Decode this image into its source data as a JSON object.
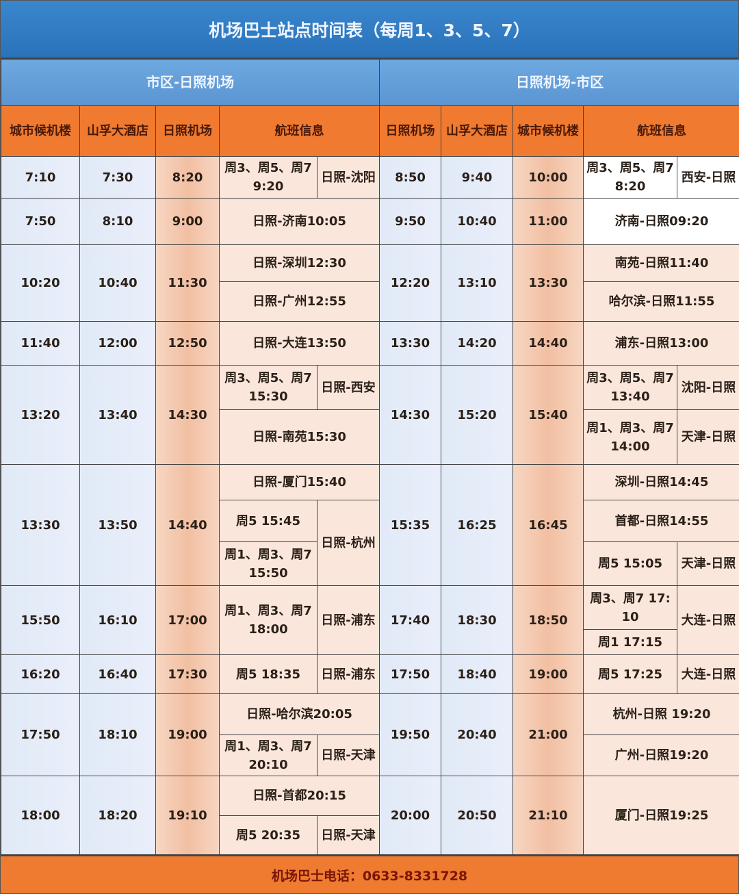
{
  "title": "机场巴士站点时间表（每周1、3、5、7）",
  "sections": {
    "left": "市区-日照机场",
    "right": "日照机场-市区"
  },
  "headers": {
    "left": [
      "城市候机楼",
      "山孚大酒店",
      "日照机场",
      "航班信息"
    ],
    "right": [
      "日照机场",
      "山孚大酒店",
      "城市候机楼",
      "航班信息"
    ]
  },
  "groups": [
    {
      "left": [
        "7:10",
        "7:30",
        "8:20"
      ],
      "lf": [
        "周3、周5、周7 9:20",
        "日照-沈阳"
      ],
      "right": [
        "8:50",
        "9:40",
        "10:00"
      ],
      "rf": [
        "周3、周5、周7 8:20",
        "西安-日照"
      ]
    },
    {
      "left": [
        "7:50",
        "8:10",
        "9:00"
      ],
      "lf": [
        "日照-济南10:05"
      ],
      "right": [
        "9:50",
        "10:40",
        "11:00"
      ],
      "rf": [
        "济南-日照09:20"
      ]
    },
    {
      "left": [
        "10:20",
        "10:40",
        "11:30"
      ],
      "lf": [
        "日照-深圳12:30",
        "日照-广州12:55"
      ],
      "right": [
        "12:20",
        "13:10",
        "13:30"
      ],
      "rf": [
        "南苑-日照11:40",
        "哈尔滨-日照11:55"
      ]
    },
    {
      "left": [
        "11:40",
        "12:00",
        "12:50"
      ],
      "lf": [
        "日照-大连13:50"
      ],
      "right": [
        "13:30",
        "14:20",
        "14:40"
      ],
      "rf": [
        "浦东-日照13:00"
      ]
    },
    {
      "left": [
        "13:20",
        "13:40",
        "14:30"
      ],
      "lf": [
        "周3、周5、周7 15:30",
        "日照-西安",
        "日照-南苑15:30"
      ],
      "right": [
        "14:30",
        "15:20",
        "15:40"
      ],
      "rf": [
        "周3、周5、周7 13:40",
        "沈阳-日照",
        "周1、周3、周7 14:00",
        "天津-日照"
      ]
    },
    {
      "left": [
        "13:30",
        "13:50",
        "14:40"
      ],
      "lf": [
        "日照-厦门15:40",
        "周5 15:45",
        "日照-杭州",
        "周1、周3、周7 15:50"
      ],
      "right": [
        "15:35",
        "16:25",
        "16:45"
      ],
      "rf": [
        "深圳-日照14:45",
        "首都-日照14:55",
        "周5 15:05",
        "天津-日照"
      ]
    },
    {
      "left": [
        "15:50",
        "16:10",
        "17:00"
      ],
      "lf": [
        "周1、周3、周7 18:00",
        "日照-浦东"
      ],
      "right": [
        "17:40",
        "18:30",
        "18:50"
      ],
      "rf": [
        "周3、周7 17:10",
        "大连-日照",
        "周1 17:15"
      ]
    },
    {
      "left": [
        "16:20",
        "16:40",
        "17:30"
      ],
      "lf": [
        "周5 18:35",
        "日照-浦东"
      ],
      "right": [
        "17:50",
        "18:40",
        "19:00"
      ],
      "rf": [
        "周5 17:25",
        "大连-日照"
      ]
    },
    {
      "left": [
        "17:50",
        "18:10",
        "19:00"
      ],
      "lf": [
        "日照-哈尔滨20:05",
        "周1、周3、周7 20:10",
        "日照-天津"
      ],
      "right": [
        "19:50",
        "20:40",
        "21:00"
      ],
      "rf": [
        "杭州-日照 19:20",
        "广州-日照19:20"
      ]
    },
    {
      "left": [
        "18:00",
        "18:20",
        "19:10"
      ],
      "lf": [
        "日照-首都20:15",
        "周5 20:35",
        "日照-天津"
      ],
      "right": [
        "20:00",
        "20:50",
        "21:10"
      ],
      "rf": [
        "厦门-日照19:25"
      ]
    }
  ],
  "footer": "机场巴士电话：0633-8331728"
}
